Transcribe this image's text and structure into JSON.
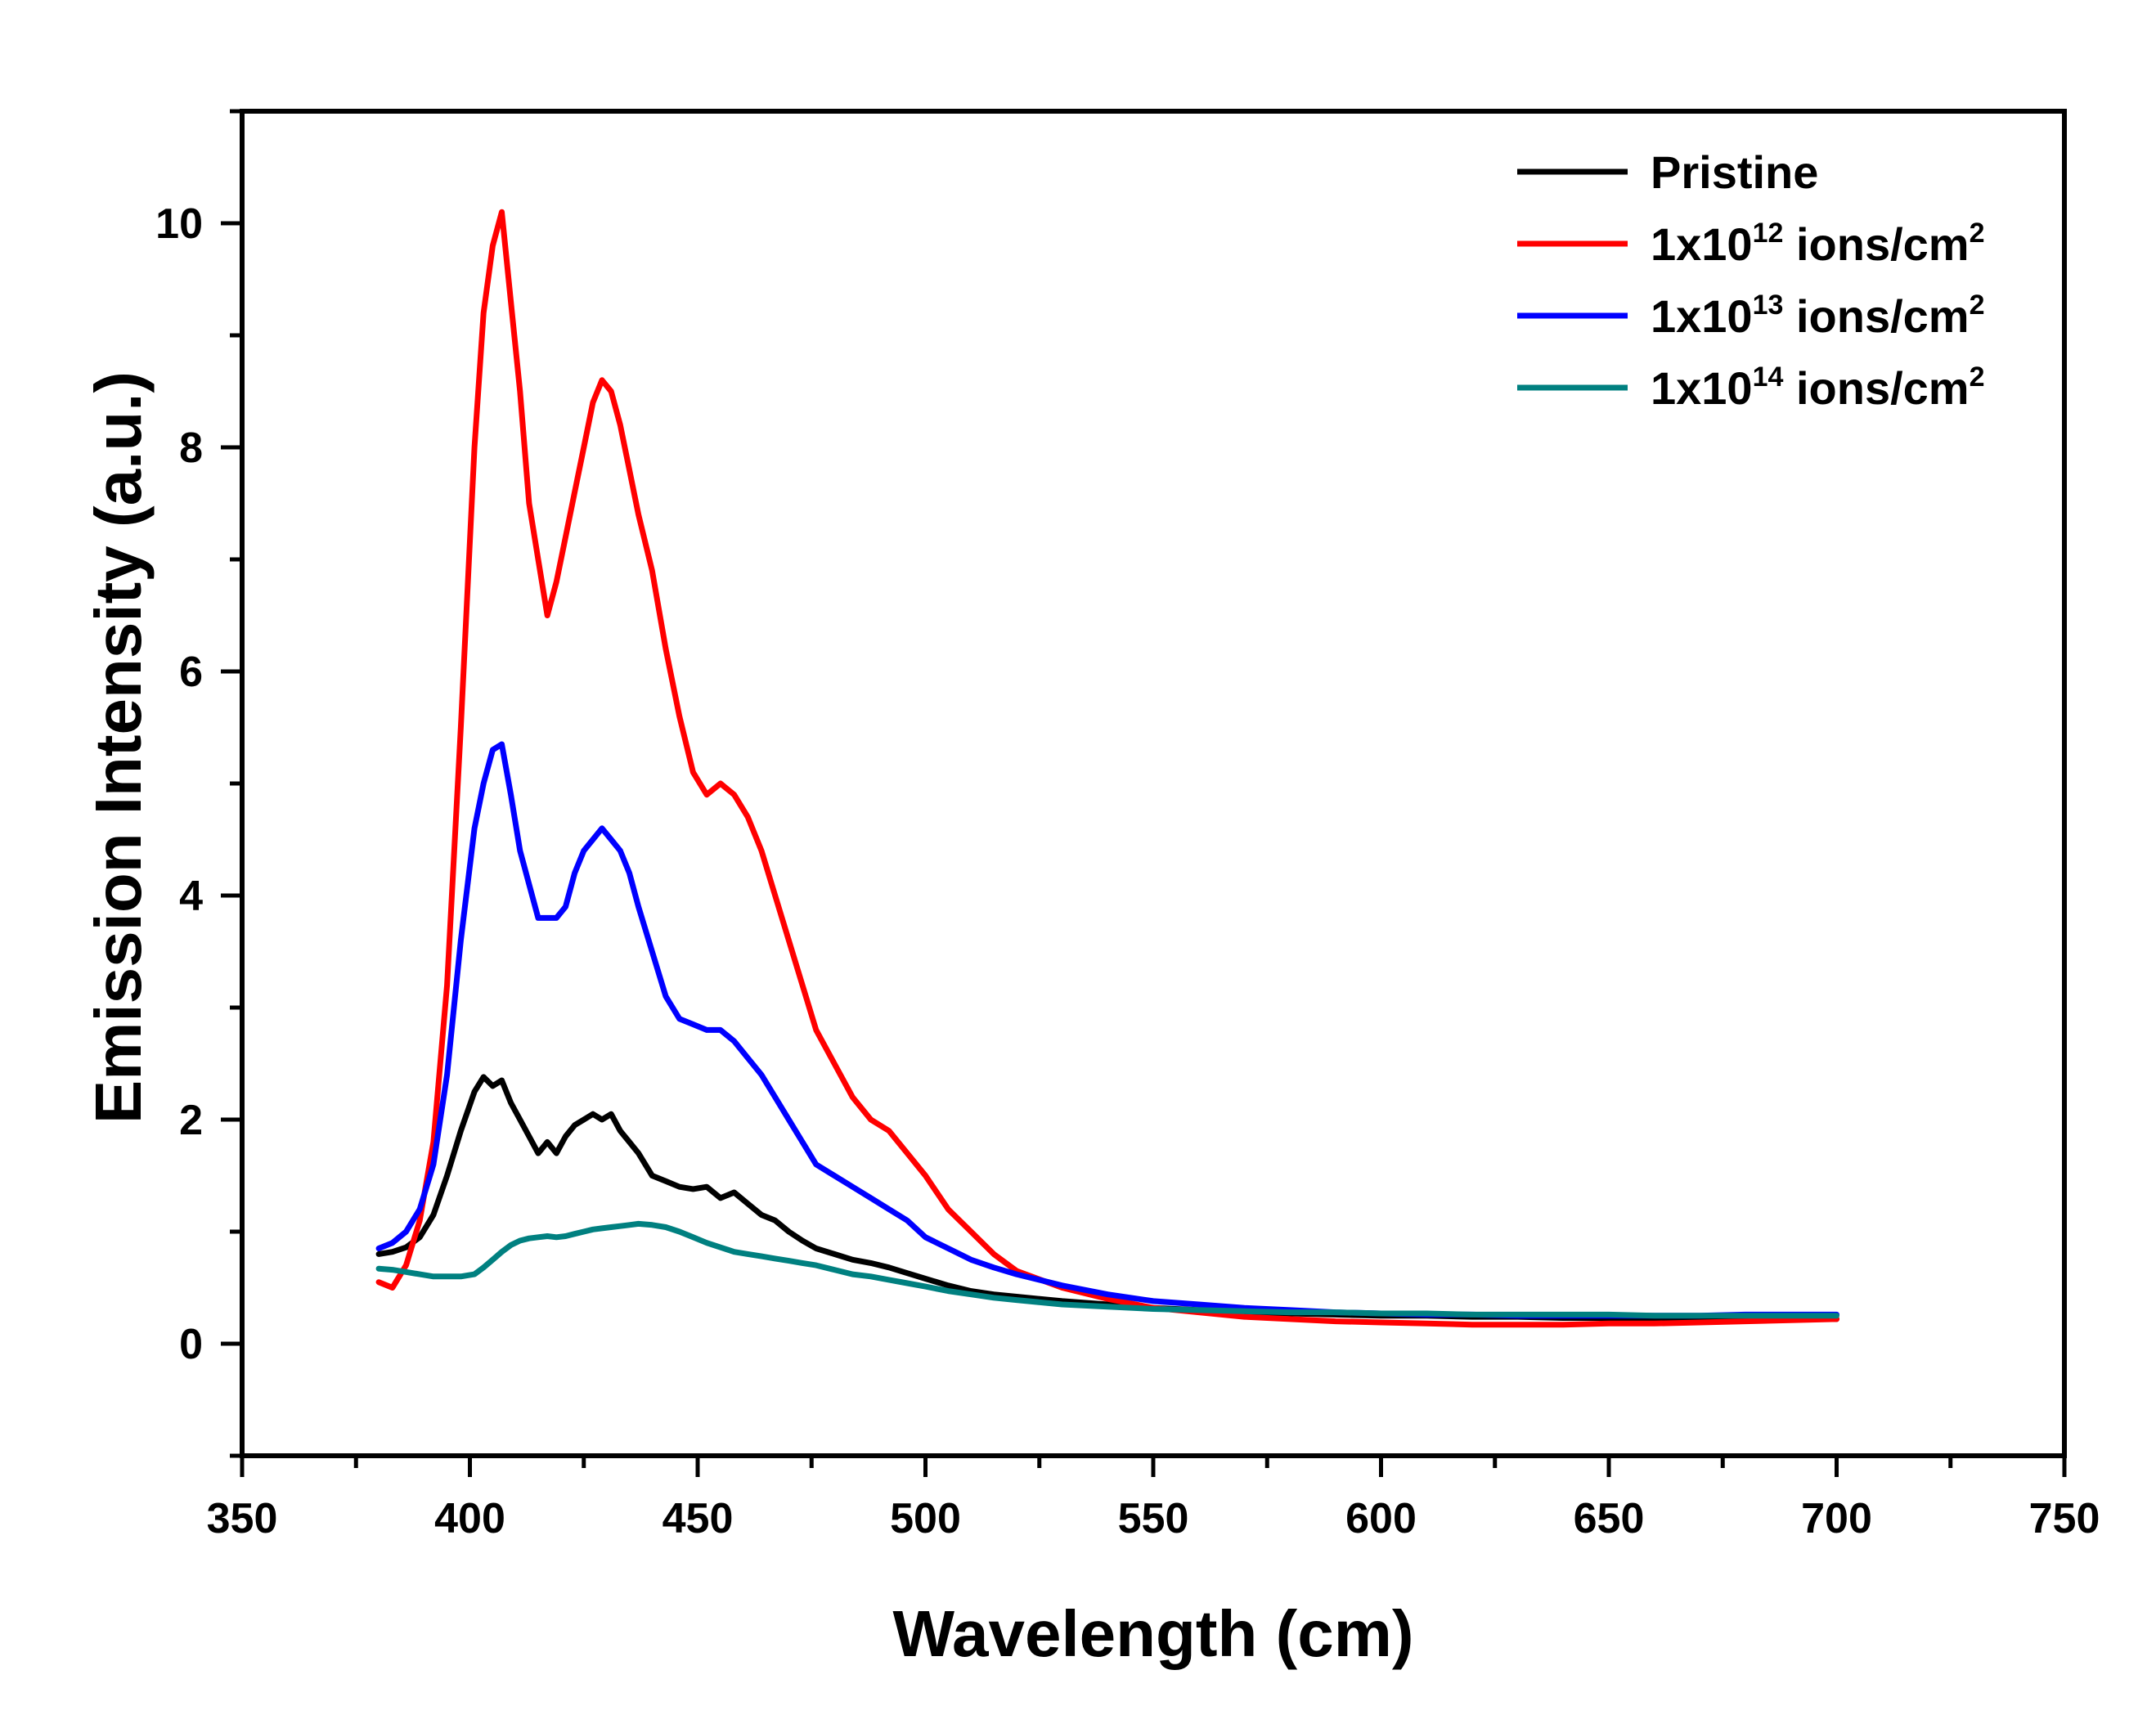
{
  "chart_data": {
    "type": "line",
    "title": "",
    "xlabel": "Wavelength (cm)",
    "ylabel": "Emission Intensity (a.u.)",
    "xlim": [
      350,
      750
    ],
    "ylim": [
      -1,
      11
    ],
    "x_ticks": [
      350,
      400,
      450,
      500,
      550,
      600,
      650,
      700,
      750
    ],
    "x_tick_labels": [
      "350",
      "400",
      "450",
      "500",
      "550",
      "600",
      "650",
      "700",
      "750"
    ],
    "y_ticks": [
      0,
      2,
      4,
      6,
      8,
      10
    ],
    "y_tick_labels": [
      "0",
      "2",
      "4",
      "6",
      "8",
      "10"
    ],
    "grid": false,
    "legend_position": "top-right",
    "x": [
      380,
      383,
      386,
      389,
      392,
      395,
      398,
      401,
      403,
      405,
      407,
      409,
      411,
      413,
      415,
      417,
      419,
      421,
      423,
      425,
      427,
      429,
      431,
      433,
      435,
      437,
      440,
      443,
      446,
      449,
      452,
      455,
      458,
      461,
      464,
      467,
      470,
      473,
      476,
      480,
      484,
      488,
      492,
      496,
      500,
      505,
      510,
      515,
      520,
      530,
      540,
      550,
      560,
      570,
      580,
      590,
      600,
      610,
      620,
      630,
      640,
      650,
      660,
      670,
      680,
      690,
      700
    ],
    "series": [
      {
        "name": "Pristine",
        "label_main": "Pristine",
        "label_sup": "",
        "label_tail": "",
        "color": "#000000",
        "values": [
          0.8,
          0.82,
          0.86,
          0.95,
          1.15,
          1.5,
          1.9,
          2.25,
          2.38,
          2.3,
          2.35,
          2.15,
          2.0,
          1.85,
          1.7,
          1.8,
          1.7,
          1.85,
          1.95,
          2.0,
          2.05,
          2.0,
          2.05,
          1.9,
          1.8,
          1.7,
          1.5,
          1.45,
          1.4,
          1.38,
          1.4,
          1.3,
          1.35,
          1.25,
          1.15,
          1.1,
          1.0,
          0.92,
          0.85,
          0.8,
          0.75,
          0.72,
          0.68,
          0.63,
          0.58,
          0.52,
          0.47,
          0.44,
          0.42,
          0.38,
          0.35,
          0.32,
          0.3,
          0.28,
          0.27,
          0.26,
          0.25,
          0.25,
          0.24,
          0.24,
          0.23,
          0.23,
          0.22,
          0.22,
          0.22,
          0.22,
          0.22
        ]
      },
      {
        "name": "1x10^12 ions/cm^2",
        "label_main": "1x10",
        "label_sup": "12",
        "label_tail": " ions/cm",
        "color": "#ff0000",
        "values": [
          0.55,
          0.5,
          0.7,
          1.1,
          1.8,
          3.2,
          5.5,
          8.0,
          9.2,
          9.8,
          10.1,
          9.3,
          8.5,
          7.5,
          7.0,
          6.5,
          6.8,
          7.2,
          7.6,
          8.0,
          8.4,
          8.6,
          8.5,
          8.2,
          7.8,
          7.4,
          6.9,
          6.2,
          5.6,
          5.1,
          4.9,
          5.0,
          4.9,
          4.7,
          4.4,
          4.0,
          3.6,
          3.2,
          2.8,
          2.5,
          2.2,
          2.0,
          1.9,
          1.7,
          1.5,
          1.2,
          1.0,
          0.8,
          0.65,
          0.5,
          0.4,
          0.32,
          0.28,
          0.24,
          0.22,
          0.2,
          0.19,
          0.18,
          0.17,
          0.17,
          0.17,
          0.18,
          0.18,
          0.19,
          0.2,
          0.21,
          0.22
        ]
      },
      {
        "name": "1x10^13 ions/cm^2",
        "label_main": "1x10",
        "label_sup": "13",
        "label_tail": " ions/cm",
        "color": "#0000ff",
        "values": [
          0.85,
          0.9,
          1.0,
          1.2,
          1.6,
          2.4,
          3.6,
          4.6,
          5.0,
          5.3,
          5.35,
          4.9,
          4.4,
          4.1,
          3.8,
          3.8,
          3.8,
          3.9,
          4.2,
          4.4,
          4.5,
          4.6,
          4.5,
          4.4,
          4.2,
          3.9,
          3.5,
          3.1,
          2.9,
          2.85,
          2.8,
          2.8,
          2.7,
          2.55,
          2.4,
          2.2,
          2.0,
          1.8,
          1.6,
          1.5,
          1.4,
          1.3,
          1.2,
          1.1,
          0.95,
          0.85,
          0.75,
          0.68,
          0.62,
          0.52,
          0.44,
          0.38,
          0.35,
          0.32,
          0.3,
          0.28,
          0.27,
          0.26,
          0.26,
          0.25,
          0.25,
          0.25,
          0.25,
          0.25,
          0.26,
          0.26,
          0.26
        ]
      },
      {
        "name": "1x10^14 ions/cm^2",
        "label_main": "1x10",
        "label_sup": "14",
        "label_tail": " ions/cm",
        "color": "#008080",
        "values": [
          0.67,
          0.66,
          0.64,
          0.62,
          0.6,
          0.6,
          0.6,
          0.62,
          0.68,
          0.75,
          0.82,
          0.88,
          0.92,
          0.94,
          0.95,
          0.96,
          0.95,
          0.96,
          0.98,
          1.0,
          1.02,
          1.03,
          1.04,
          1.05,
          1.06,
          1.07,
          1.06,
          1.04,
          1.0,
          0.95,
          0.9,
          0.86,
          0.82,
          0.8,
          0.78,
          0.76,
          0.74,
          0.72,
          0.7,
          0.66,
          0.62,
          0.6,
          0.57,
          0.54,
          0.51,
          0.47,
          0.44,
          0.41,
          0.39,
          0.35,
          0.33,
          0.31,
          0.3,
          0.29,
          0.28,
          0.28,
          0.27,
          0.27,
          0.26,
          0.26,
          0.26,
          0.26,
          0.25,
          0.25,
          0.25,
          0.25,
          0.25
        ]
      }
    ]
  }
}
